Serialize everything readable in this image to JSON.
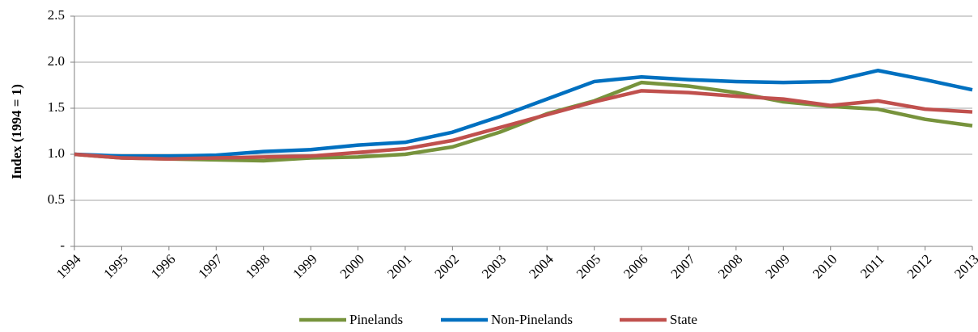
{
  "chart_data": {
    "type": "line",
    "y_label": "Index (1994 = 1)",
    "categories": [
      "1994",
      "1995",
      "1996",
      "1997",
      "1998",
      "1999",
      "2000",
      "2001",
      "2002",
      "2003",
      "2004",
      "2005",
      "2006",
      "2007",
      "2008",
      "2009",
      "2010",
      "2011",
      "2012",
      "2013"
    ],
    "series": [
      {
        "name": "Pinelands",
        "color": "#77933c",
        "values": [
          1.0,
          0.96,
          0.95,
          0.94,
          0.93,
          0.96,
          0.97,
          1.0,
          1.08,
          1.24,
          1.44,
          1.58,
          1.78,
          1.74,
          1.67,
          1.57,
          1.52,
          1.49,
          1.38,
          1.31
        ]
      },
      {
        "name": "Non-Pinelands",
        "color": "#0070c0",
        "values": [
          1.0,
          0.98,
          0.98,
          0.99,
          1.03,
          1.05,
          1.1,
          1.13,
          1.24,
          1.41,
          1.6,
          1.79,
          1.84,
          1.81,
          1.79,
          1.78,
          1.79,
          1.91,
          1.81,
          1.7
        ]
      },
      {
        "name": "State",
        "color": "#c0504d",
        "values": [
          1.0,
          0.96,
          0.95,
          0.96,
          0.97,
          0.98,
          1.02,
          1.06,
          1.15,
          1.29,
          1.43,
          1.57,
          1.69,
          1.67,
          1.63,
          1.6,
          1.53,
          1.58,
          1.49,
          1.46
        ]
      }
    ],
    "ylim": [
      0,
      2.5
    ],
    "yticks": [
      {
        "value": 0,
        "label": "-"
      },
      0.5,
      {
        "value": 1,
        "label": "1.0"
      },
      1.5,
      {
        "value": 2,
        "label": "2.0"
      },
      2.5
    ],
    "grid": true,
    "legend": "bottom"
  }
}
